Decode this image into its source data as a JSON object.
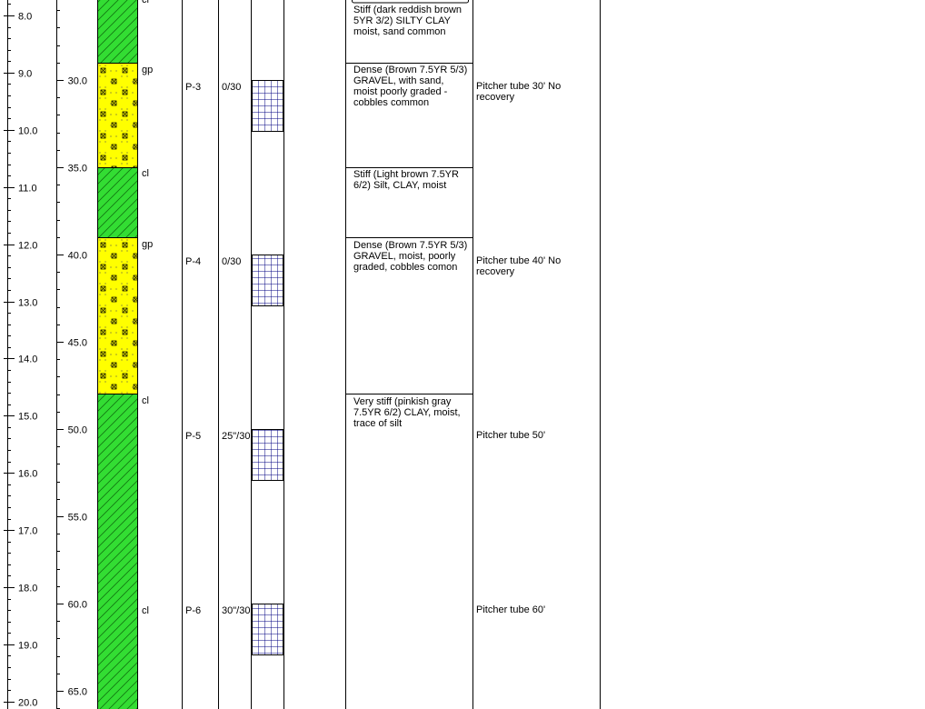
{
  "depth_m": [
    "8.0",
    "9.0",
    "10.0",
    "11.0",
    "12.0",
    "13.0",
    "14.0",
    "15.0",
    "16.0",
    "17.0",
    "18.0",
    "19.0",
    "20.0"
  ],
  "depth_ft": [
    "30.0",
    "35.0",
    "40.0",
    "45.0",
    "50.0",
    "55.0",
    "60.0",
    "65.0"
  ],
  "strata_labels": [
    "cl",
    "gp",
    "cl",
    "gp",
    "cl",
    "cl"
  ],
  "samples": [
    {
      "id": "P-3",
      "blows": "0/30"
    },
    {
      "id": "P-4",
      "blows": "0/30"
    },
    {
      "id": "P-5",
      "blows": "25\"/30"
    },
    {
      "id": "P-6",
      "blows": "30\"/30"
    }
  ],
  "descriptions": [
    "Stiff (dark reddish brown 5YR 3/2) SILTY CLAY moist, sand common",
    "Dense (Brown 7.5YR 5/3) GRAVEL, with sand, moist poorly graded - cobbles common",
    "Stiff (Light brown 7.5YR 6/2) Silt, CLAY, moist",
    "Dense (Brown 7.5YR 5/3) GRAVEL, moist, poorly graded, cobbles comon",
    "Very stiff (pinkish gray 7.5YR 6/2) CLAY, moist, trace of silt"
  ],
  "remarks": [
    "Pitcher tube 30' No recovery",
    "Pitcher tube 40' No recovery",
    "Pitcher tube 50'",
    "Pitcher tube 60'"
  ]
}
